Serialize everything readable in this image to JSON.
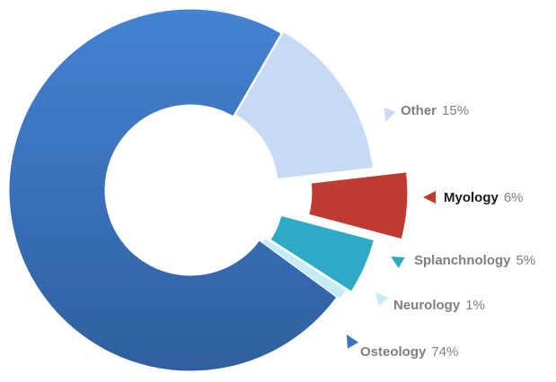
{
  "chart_data": {
    "type": "donut",
    "categories": [
      "Other",
      "Myology",
      "Splanchnology",
      "Neurology",
      "Osteology"
    ],
    "values": [
      15,
      6,
      5,
      1,
      74
    ],
    "value_labels": [
      "15%",
      "6%",
      "5%",
      "1%",
      "74%"
    ],
    "colors": [
      "#c6daf6",
      "#bf3a30",
      "#2ea9c6",
      "#c4ecf7",
      "#3b73c0"
    ]
  }
}
